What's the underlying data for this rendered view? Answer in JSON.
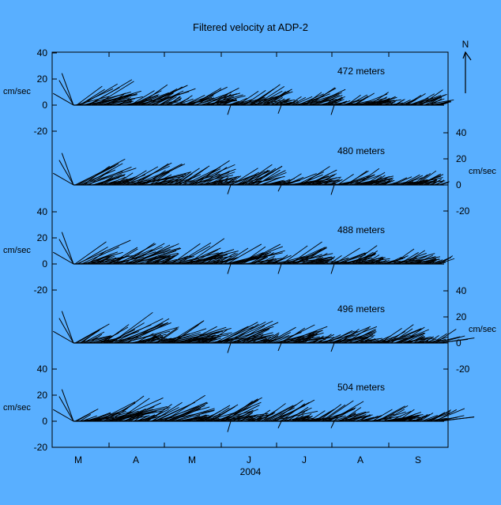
{
  "chart_data": {
    "type": "stick-plot",
    "title": "Filtered velocity at ADP-2",
    "xlabel": "2004",
    "month_labels": [
      "M",
      "A",
      "M",
      "J",
      "J",
      "A",
      "S"
    ],
    "north_label": "N",
    "y_unit_label": "cm/sec",
    "ylim": [
      -20,
      40
    ],
    "yticks": [
      -20,
      0,
      20,
      40
    ],
    "panels": [
      {
        "label": "472 meters",
        "axis_side": "left",
        "max_speed": 32
      },
      {
        "label": "480 meters",
        "axis_side": "right",
        "max_speed": 34
      },
      {
        "label": "488 meters",
        "axis_side": "left",
        "max_speed": 36
      },
      {
        "label": "496 meters",
        "axis_side": "right",
        "max_speed": 38
      },
      {
        "label": "504 meters",
        "axis_side": "left",
        "max_speed": 36
      }
    ]
  }
}
